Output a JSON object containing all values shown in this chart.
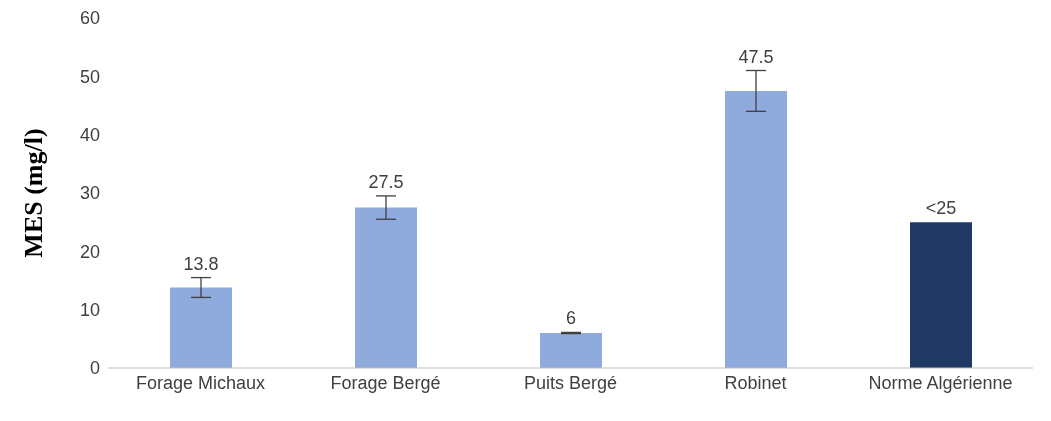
{
  "chart_data": {
    "type": "bar",
    "ylabel": "MES (mg/l)",
    "categories": [
      "Forage Michaux",
      "Forage Bergé",
      "Puits Bergé",
      "Robinet",
      "Norme Algérienne"
    ],
    "values": [
      13.8,
      27.5,
      6,
      47.5,
      25
    ],
    "colors": [
      "#8faadc",
      "#8faadc",
      "#8faadc",
      "#8faadc",
      "#203864"
    ],
    "errors": [
      1.7,
      2,
      0.1,
      3.5,
      null
    ],
    "value_labels": [
      "13.8",
      "27.5",
      "6",
      "47.5",
      "<25"
    ],
    "ylim": [
      0,
      60
    ],
    "yticks": [
      0,
      10,
      20,
      30,
      40,
      50,
      60
    ],
    "grid": false,
    "legend": false
  }
}
